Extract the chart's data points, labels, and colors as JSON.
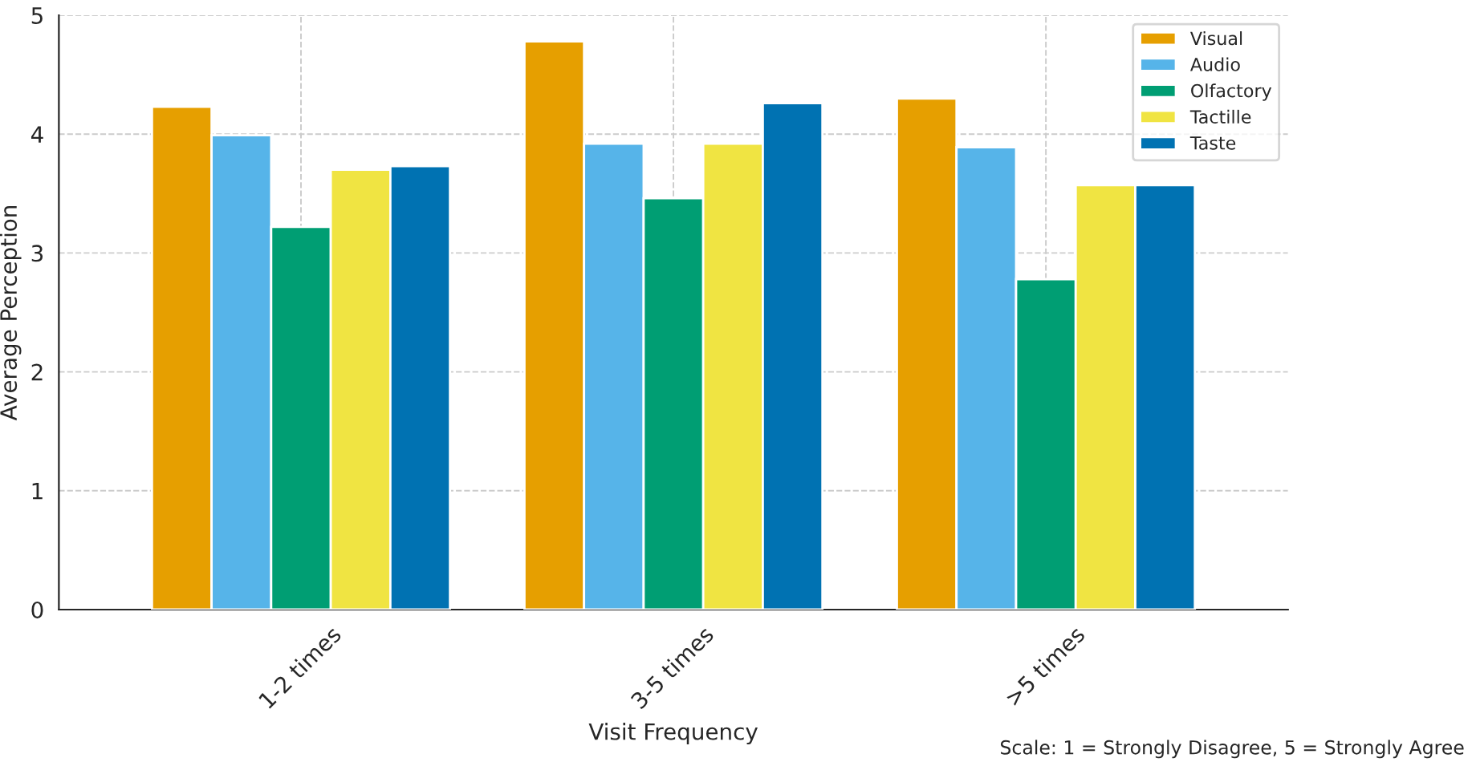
{
  "chart_data": {
    "type": "bar",
    "xlabel": "Visit Frequency",
    "ylabel": "Average Perception",
    "categories": [
      "1-2 times",
      "3-5 times",
      ">5 times"
    ],
    "series": [
      {
        "name": "Visual",
        "color": "#e69f00",
        "values": [
          4.23,
          4.78,
          4.3
        ]
      },
      {
        "name": "Audio",
        "color": "#56b4e9",
        "values": [
          3.99,
          3.92,
          3.89
        ]
      },
      {
        "name": "Olfactory",
        "color": "#009e73",
        "values": [
          3.22,
          3.46,
          2.78
        ]
      },
      {
        "name": "Tactille",
        "color": "#f0e442",
        "values": [
          3.7,
          3.92,
          3.57
        ]
      },
      {
        "name": "Taste",
        "color": "#0072b2",
        "values": [
          3.73,
          4.26,
          3.57
        ]
      }
    ],
    "ylim": [
      0,
      5
    ],
    "yticks": [
      0,
      1,
      2,
      3,
      4,
      5
    ],
    "grid": true,
    "legend": "top right",
    "annotations": [
      "Scale: 1 = Strongly Disagree, 5 = Strongly Agree"
    ]
  }
}
